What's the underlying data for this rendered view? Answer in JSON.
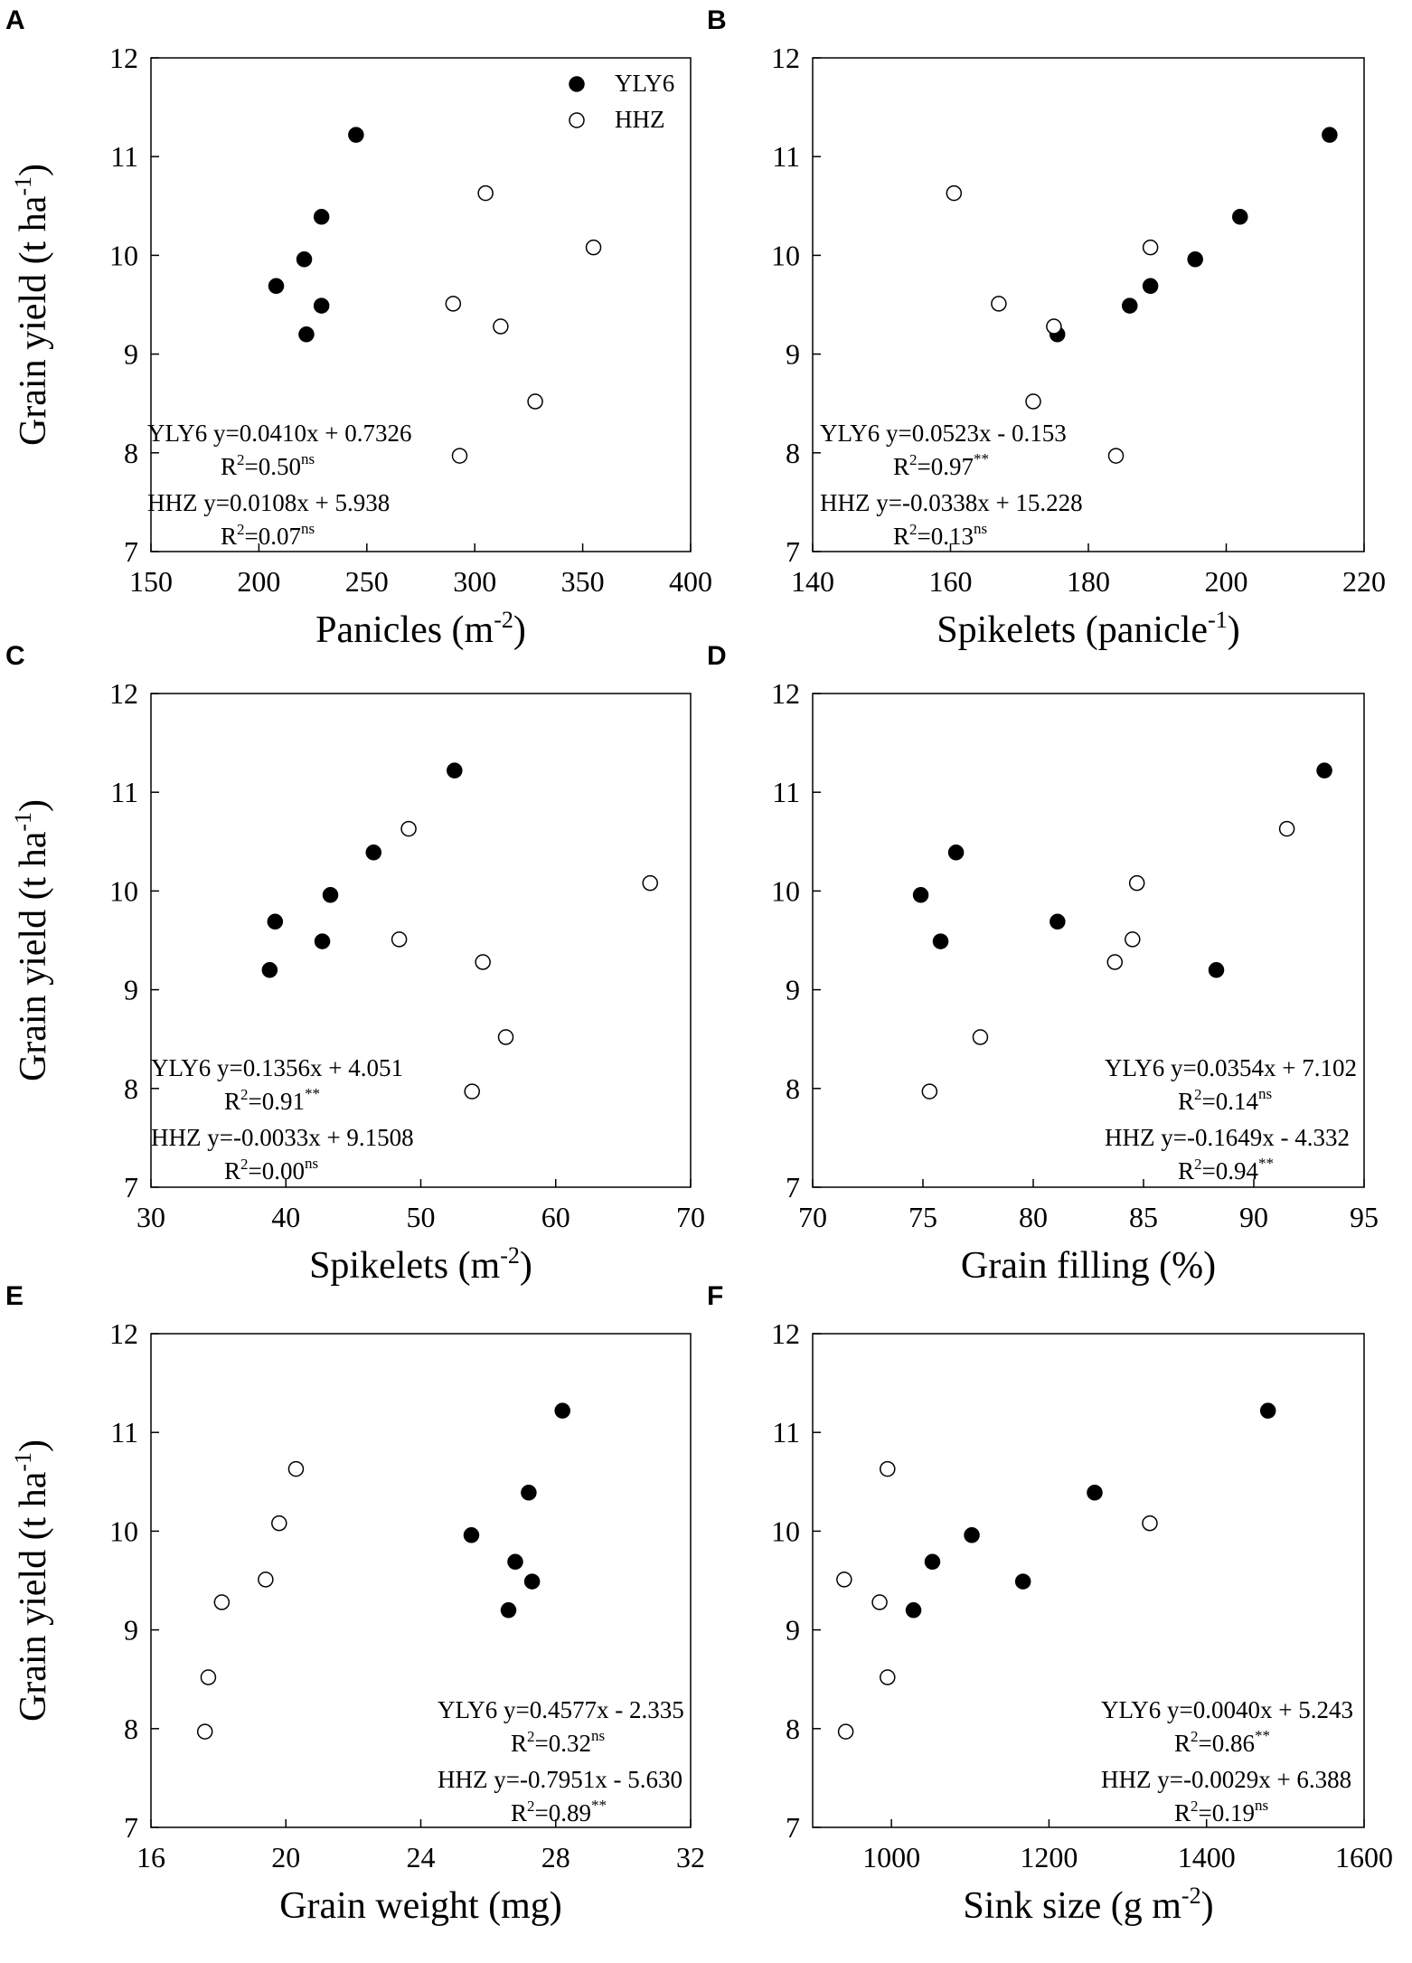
{
  "chart_data": [
    {
      "panel": "A",
      "type": "scatter",
      "xlabel": "Panicles (m",
      "xlabel_sup": "-2",
      "xlabel_end": ")",
      "ylabel": "Grain yield (t ha",
      "ylabel_sup": "-1",
      "ylabel_end": ")",
      "xlim": [
        150,
        400
      ],
      "ylim": [
        7,
        12
      ],
      "xticks": [
        "150",
        "200",
        "250",
        "300",
        "350",
        "400"
      ],
      "yticks": [
        "7",
        "8",
        "9",
        "10",
        "11",
        "12"
      ],
      "legend": {
        "placement": "top-right",
        "entries": [
          "YLY6",
          "HHZ"
        ]
      },
      "series": [
        {
          "name": "YLY6",
          "marker": "filled",
          "points": [
            [
              245,
              11.22
            ],
            [
              229,
              10.39
            ],
            [
              221,
              9.96
            ],
            [
              208,
              9.69
            ],
            [
              229,
              9.49
            ],
            [
              222,
              9.2
            ]
          ]
        },
        {
          "name": "HHZ",
          "marker": "open",
          "points": [
            [
              305,
              10.63
            ],
            [
              355,
              10.08
            ],
            [
              290,
              9.51
            ],
            [
              312,
              9.28
            ],
            [
              328,
              8.52
            ],
            [
              293,
              7.97
            ]
          ]
        }
      ],
      "annotations": [
        {
          "line1": "YLY6  y=0.0410x + 0.7326",
          "r2": "R",
          "r2_sup": "2",
          "r2_val": "=0.50",
          "r2_sig": "ns"
        },
        {
          "line1": "HHZ   y=0.0108x + 5.938",
          "r2": "R",
          "r2_sup": "2",
          "r2_val": "=0.07",
          "r2_sig": "ns"
        }
      ]
    },
    {
      "panel": "B",
      "type": "scatter",
      "xlabel": "Spikelets (panicle",
      "xlabel_sup": "-1",
      "xlabel_end": ")",
      "ylabel": "",
      "ylabel_sup": "",
      "ylabel_end": "",
      "xlim": [
        140,
        220
      ],
      "ylim": [
        7,
        12
      ],
      "xticks": [
        "140",
        "160",
        "180",
        "200",
        "220"
      ],
      "yticks": [
        "7",
        "8",
        "9",
        "10",
        "11",
        "12"
      ],
      "series": [
        {
          "name": "YLY6",
          "marker": "filled",
          "points": [
            [
              215,
              11.22
            ],
            [
              202,
              10.39
            ],
            [
              195.5,
              9.96
            ],
            [
              189,
              9.69
            ],
            [
              186,
              9.49
            ],
            [
              175.5,
              9.2
            ]
          ]
        },
        {
          "name": "HHZ",
          "marker": "open",
          "points": [
            [
              160.5,
              10.63
            ],
            [
              189,
              10.08
            ],
            [
              167,
              9.51
            ],
            [
              175,
              9.28
            ],
            [
              172,
              8.52
            ],
            [
              184,
              7.97
            ]
          ]
        }
      ],
      "annotations": [
        {
          "line1": "YLY6   y=0.0523x - 0.153",
          "r2": "R",
          "r2_sup": "2",
          "r2_val": "=0.97",
          "r2_sig": "**"
        },
        {
          "line1": "HHZ    y=-0.0338x + 15.228",
          "r2": "R",
          "r2_sup": "2",
          "r2_val": "=0.13",
          "r2_sig": "ns"
        }
      ]
    },
    {
      "panel": "C",
      "type": "scatter",
      "xlabel": "Spikelets (m",
      "xlabel_sup": "-2",
      "xlabel_end": ")",
      "ylabel": "Grain yield (t ha",
      "ylabel_sup": "-1",
      "ylabel_end": ")",
      "xlim": [
        30,
        70
      ],
      "ylim": [
        7,
        12
      ],
      "xticks": [
        "30",
        "40",
        "50",
        "60",
        "70"
      ],
      "yticks": [
        "7",
        "8",
        "9",
        "10",
        "11",
        "12"
      ],
      "series": [
        {
          "name": "YLY6",
          "marker": "filled",
          "points": [
            [
              52.5,
              11.22
            ],
            [
              46.5,
              10.39
            ],
            [
              43.3,
              9.96
            ],
            [
              39.2,
              9.69
            ],
            [
              42.7,
              9.49
            ],
            [
              38.8,
              9.2
            ]
          ]
        },
        {
          "name": "HHZ",
          "marker": "open",
          "points": [
            [
              49.1,
              10.63
            ],
            [
              67,
              10.08
            ],
            [
              48.4,
              9.51
            ],
            [
              54.6,
              9.28
            ],
            [
              56.3,
              8.52
            ],
            [
              53.8,
              7.97
            ]
          ]
        }
      ],
      "annotations": [
        {
          "line1": "YLY6  y=0.1356x + 4.051",
          "r2": "R",
          "r2_sup": "2",
          "r2_val": "=0.91",
          "r2_sig": "**"
        },
        {
          "line1": "HHZ    y=-0.0033x + 9.1508",
          "r2": "R",
          "r2_sup": "2",
          "r2_val": "=0.00",
          "r2_sig": "ns"
        }
      ]
    },
    {
      "panel": "D",
      "type": "scatter",
      "xlabel": "Grain filling (%)",
      "xlabel_sup": "",
      "xlabel_end": "",
      "ylabel": "",
      "ylabel_sup": "",
      "ylabel_end": "",
      "xlim": [
        70,
        95
      ],
      "ylim": [
        7,
        12
      ],
      "xticks": [
        "70",
        "75",
        "80",
        "85",
        "90",
        "95"
      ],
      "yticks": [
        "7",
        "8",
        "9",
        "10",
        "11",
        "12"
      ],
      "series": [
        {
          "name": "YLY6",
          "marker": "filled",
          "points": [
            [
              93.2,
              11.22
            ],
            [
              76.5,
              10.39
            ],
            [
              74.9,
              9.96
            ],
            [
              81.1,
              9.69
            ],
            [
              75.8,
              9.49
            ],
            [
              88.3,
              9.2
            ]
          ]
        },
        {
          "name": "HHZ",
          "marker": "open",
          "points": [
            [
              91.5,
              10.63
            ],
            [
              84.7,
              10.08
            ],
            [
              84.5,
              9.51
            ],
            [
              83.7,
              9.28
            ],
            [
              77.6,
              8.52
            ],
            [
              75.3,
              7.97
            ]
          ]
        }
      ],
      "annotations": [
        {
          "line1": "YLY6  y=0.0354x + 7.102",
          "r2": "R",
          "r2_sup": "2",
          "r2_val": "=0.14",
          "r2_sig": "ns"
        },
        {
          "line1": "HHZ   y=-0.1649x - 4.332",
          "r2": "R",
          "r2_sup": "2",
          "r2_val": "=0.94",
          "r2_sig": "**"
        }
      ]
    },
    {
      "panel": "E",
      "type": "scatter",
      "xlabel": "Grain weight (mg)",
      "xlabel_sup": "",
      "xlabel_end": "",
      "ylabel": "Grain yield (t ha",
      "ylabel_sup": "-1",
      "ylabel_end": ")",
      "xlim": [
        16,
        32
      ],
      "ylim": [
        7,
        12
      ],
      "xticks": [
        "16",
        "20",
        "24",
        "28",
        "32"
      ],
      "yticks": [
        "7",
        "8",
        "9",
        "10",
        "11",
        "12"
      ],
      "series": [
        {
          "name": "YLY6",
          "marker": "filled",
          "points": [
            [
              28.2,
              11.22
            ],
            [
              27.2,
              10.39
            ],
            [
              25.5,
              9.96
            ],
            [
              26.8,
              9.69
            ],
            [
              27.3,
              9.49
            ],
            [
              26.6,
              9.2
            ]
          ]
        },
        {
          "name": "HHZ",
          "marker": "open",
          "points": [
            [
              20.3,
              10.63
            ],
            [
              19.8,
              10.08
            ],
            [
              19.4,
              9.51
            ],
            [
              18.1,
              9.28
            ],
            [
              17.7,
              8.52
            ],
            [
              17.6,
              7.97
            ]
          ]
        }
      ],
      "annotations": [
        {
          "line1": "YLY6  y=0.4577x - 2.335",
          "r2": "R",
          "r2_sup": "2",
          "r2_val": "=0.32",
          "r2_sig": "ns"
        },
        {
          "line1": "HHZ    y=-0.7951x - 5.630",
          "r2": "R",
          "r2_sup": "2",
          "r2_val": "=0.89",
          "r2_sig": "**"
        }
      ]
    },
    {
      "panel": "F",
      "type": "scatter",
      "xlabel": "Sink size (g m",
      "xlabel_sup": "-2",
      "xlabel_end": ")",
      "ylabel": "",
      "ylabel_sup": "",
      "ylabel_end": "",
      "xlim": [
        900,
        1600
      ],
      "ylim": [
        7,
        12
      ],
      "xticks": [
        "1000",
        "1200",
        "1400",
        "1600"
      ],
      "yticks": [
        "7",
        "8",
        "9",
        "10",
        "11",
        "12"
      ],
      "series": [
        {
          "name": "YLY6",
          "marker": "filled",
          "points": [
            [
              1478,
              11.22
            ],
            [
              1258,
              10.39
            ],
            [
              1102,
              9.96
            ],
            [
              1052,
              9.69
            ],
            [
              1167,
              9.49
            ],
            [
              1028,
              9.2
            ]
          ]
        },
        {
          "name": "HHZ",
          "marker": "open",
          "points": [
            [
              995,
              10.63
            ],
            [
              1328,
              10.08
            ],
            [
              940,
              9.51
            ],
            [
              985,
              9.28
            ],
            [
              995,
              8.52
            ],
            [
              942,
              7.97
            ]
          ]
        }
      ],
      "annotations": [
        {
          "line1": "YLY6  y=0.0040x + 5.243",
          "r2": "R",
          "r2_sup": "2",
          "r2_val": "=0.86",
          "r2_sig": "**"
        },
        {
          "line1": "HHZ    y=-0.0029x + 6.388",
          "r2": "R",
          "r2_sup": "2",
          "r2_val": "=0.19",
          "r2_sig": "ns"
        }
      ]
    }
  ]
}
